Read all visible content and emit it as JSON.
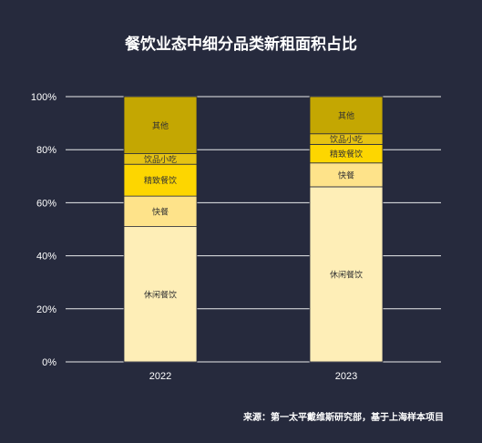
{
  "title": "餐饮业态中细分品类新租面积占比",
  "source": "来源：第一太平戴维斯研究部，基于上海样本项目",
  "colors": {
    "background": "#262a3d",
    "gridline": "#ffffff",
    "休闲餐饮": "#feeeb7",
    "快餐": "#fee38a",
    "精致餐饮": "#fdd600",
    "饮品小吃": "#e6c312",
    "其他": "#c4a702"
  },
  "chart_data": {
    "type": "bar",
    "stacked": true,
    "title": "餐饮业态中细分品类新租面积占比",
    "categories": [
      "2022",
      "2023"
    ],
    "ylim": [
      0,
      100
    ],
    "yticks": [
      "0%",
      "20%",
      "40%",
      "60%",
      "80%",
      "100%"
    ],
    "grid": true,
    "series": [
      {
        "name": "休闲餐饮",
        "values": [
          51,
          66
        ]
      },
      {
        "name": "快餐",
        "values": [
          11.5,
          9
        ]
      },
      {
        "name": "精致餐饮",
        "values": [
          12,
          7
        ]
      },
      {
        "name": "饮品小吃",
        "values": [
          4,
          4
        ]
      },
      {
        "name": "其他",
        "values": [
          21.5,
          14
        ]
      }
    ]
  }
}
